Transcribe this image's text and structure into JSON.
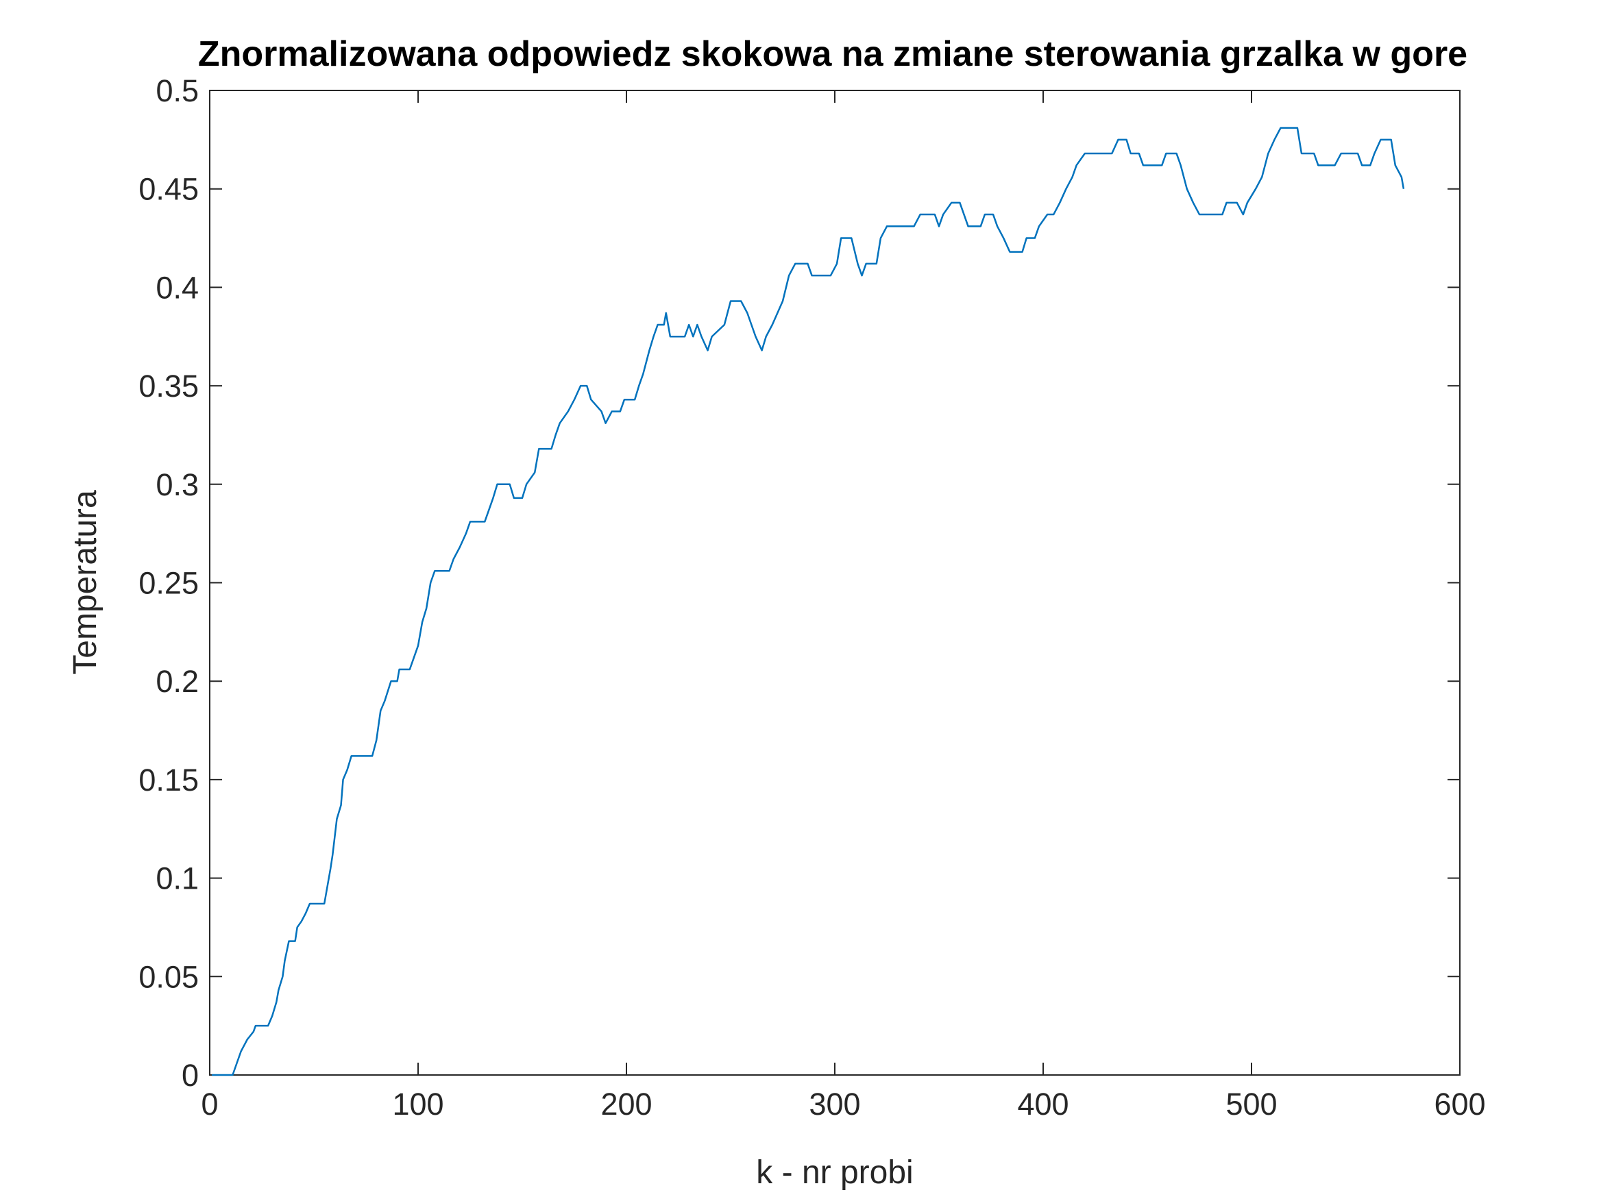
{
  "chart_data": {
    "type": "line",
    "title": "Znormalizowana odpowiedz skokowa na zmiane sterowania grzalka w gore",
    "xlabel": "k - nr probi",
    "ylabel": "Temperatura",
    "xlim": [
      0,
      600
    ],
    "xticks": [
      0,
      100,
      200,
      300,
      400,
      500,
      600
    ],
    "ylim": [
      0,
      0.5
    ],
    "yticks": [
      0,
      0.05,
      0.1,
      0.15,
      0.2,
      0.25,
      0.3,
      0.35,
      0.4,
      0.45,
      0.5
    ],
    "series": [
      {
        "color": "#0072bd",
        "x": [
          1,
          11,
          12,
          13,
          15,
          18,
          21,
          22,
          28,
          30,
          32,
          33,
          35,
          36,
          38,
          41,
          42,
          44,
          46,
          48,
          55,
          56,
          58,
          59,
          61,
          63,
          64,
          66,
          68,
          78,
          80,
          82,
          84,
          87,
          90,
          91,
          96,
          98,
          100,
          102,
          104,
          106,
          108,
          115,
          117,
          120,
          123,
          125,
          132,
          134,
          136,
          138,
          144,
          146,
          150,
          152,
          156,
          158,
          164,
          166,
          168,
          172,
          175,
          178,
          181,
          183,
          188,
          190,
          193,
          197,
          199,
          204,
          206,
          208,
          211,
          213,
          215,
          218,
          219,
          221,
          228,
          230,
          232,
          234,
          236,
          239,
          241,
          247,
          250,
          255,
          258,
          262,
          265,
          267,
          270,
          275,
          278,
          281,
          287,
          289,
          298,
          301,
          303,
          308,
          311,
          313,
          315,
          320,
          322,
          325,
          338,
          341,
          348,
          350,
          352,
          356,
          360,
          362,
          364,
          370,
          372,
          376,
          378,
          381,
          384,
          390,
          392,
          396,
          398,
          402,
          405,
          408,
          411,
          414,
          416,
          420,
          433,
          436,
          440,
          442,
          446,
          448,
          457,
          459,
          464,
          466,
          469,
          472,
          475,
          486,
          488,
          493,
          496,
          498,
          502,
          505,
          508,
          511,
          514,
          522,
          524,
          530,
          532,
          540,
          543,
          551,
          553,
          557,
          559,
          562,
          567,
          569,
          572,
          573
        ],
        "values": [
          0,
          0,
          0.003,
          0.006,
          0.012,
          0.018,
          0.022,
          0.025,
          0.025,
          0.03,
          0.037,
          0.043,
          0.05,
          0.058,
          0.068,
          0.068,
          0.075,
          0.078,
          0.082,
          0.087,
          0.087,
          0.093,
          0.105,
          0.112,
          0.13,
          0.137,
          0.15,
          0.155,
          0.162,
          0.162,
          0.17,
          0.185,
          0.19,
          0.2,
          0.2,
          0.206,
          0.206,
          0.212,
          0.218,
          0.23,
          0.237,
          0.25,
          0.256,
          0.256,
          0.262,
          0.268,
          0.275,
          0.281,
          0.281,
          0.287,
          0.293,
          0.3,
          0.3,
          0.293,
          0.293,
          0.3,
          0.306,
          0.318,
          0.318,
          0.325,
          0.331,
          0.337,
          0.343,
          0.35,
          0.35,
          0.343,
          0.337,
          0.331,
          0.337,
          0.337,
          0.343,
          0.343,
          0.35,
          0.356,
          0.368,
          0.375,
          0.381,
          0.381,
          0.387,
          0.375,
          0.375,
          0.381,
          0.375,
          0.381,
          0.375,
          0.368,
          0.375,
          0.381,
          0.393,
          0.393,
          0.387,
          0.375,
          0.368,
          0.375,
          0.381,
          0.393,
          0.406,
          0.412,
          0.412,
          0.406,
          0.406,
          0.412,
          0.425,
          0.425,
          0.412,
          0.406,
          0.412,
          0.412,
          0.425,
          0.431,
          0.431,
          0.437,
          0.437,
          0.431,
          0.437,
          0.443,
          0.443,
          0.437,
          0.431,
          0.431,
          0.437,
          0.437,
          0.431,
          0.425,
          0.418,
          0.418,
          0.425,
          0.425,
          0.431,
          0.437,
          0.437,
          0.443,
          0.45,
          0.456,
          0.462,
          0.468,
          0.468,
          0.475,
          0.475,
          0.468,
          0.468,
          0.462,
          0.462,
          0.468,
          0.468,
          0.462,
          0.45,
          0.443,
          0.437,
          0.437,
          0.443,
          0.443,
          0.437,
          0.443,
          0.45,
          0.456,
          0.468,
          0.475,
          0.481,
          0.481,
          0.468,
          0.468,
          0.462,
          0.462,
          0.468,
          0.468,
          0.462,
          0.462,
          0.468,
          0.475,
          0.475,
          0.462,
          0.456,
          0.45
        ]
      }
    ]
  }
}
